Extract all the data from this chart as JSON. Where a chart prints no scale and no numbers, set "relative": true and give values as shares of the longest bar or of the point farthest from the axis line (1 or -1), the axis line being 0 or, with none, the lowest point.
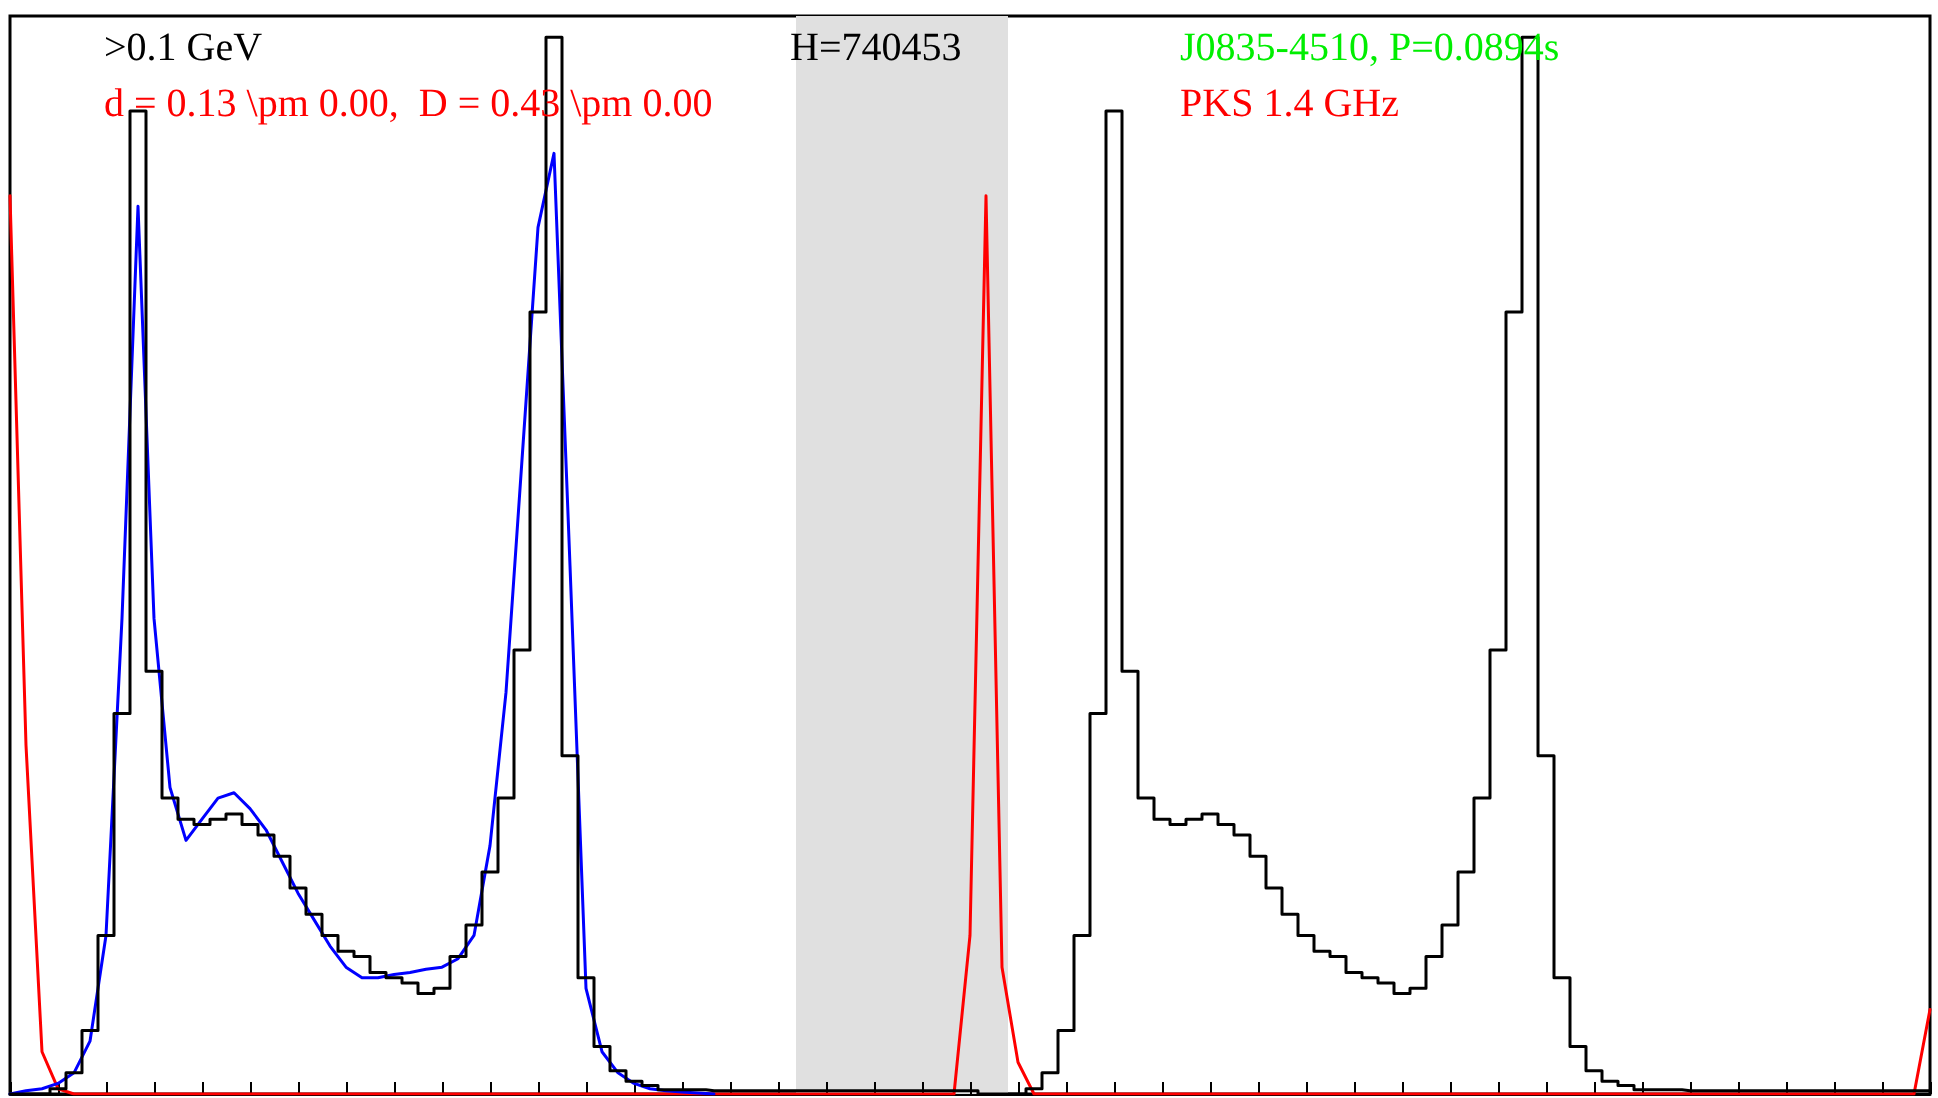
{
  "chart_data": {
    "type": "line",
    "relative": true,
    "tick_labels": false,
    "grid": false,
    "line_style": "solid",
    "categories": [
      null,
      null,
      null,
      null,
      null,
      null,
      null,
      null,
      null,
      null,
      null,
      null,
      null,
      null,
      null,
      null,
      null,
      null,
      null,
      null,
      null,
      null,
      null,
      null,
      null,
      null,
      null,
      null,
      null,
      null,
      null,
      null,
      null,
      null,
      null,
      null,
      null,
      null,
      null,
      null,
      null,
      null,
      null,
      null,
      null,
      null,
      null,
      null,
      null,
      null,
      null,
      null,
      null,
      null,
      null,
      null,
      null,
      null,
      null,
      null,
      null,
      null,
      null,
      null,
      null,
      null,
      null,
      null,
      null,
      null,
      null,
      null,
      null,
      null,
      null,
      null,
      null,
      null,
      null,
      null,
      null,
      null,
      null,
      null,
      null,
      null,
      null,
      null,
      null,
      null,
      null,
      null,
      null,
      null,
      null,
      null,
      null,
      null,
      null,
      null,
      null,
      null,
      null,
      null,
      null,
      null,
      null,
      null,
      null,
      null,
      null,
      null,
      null,
      null,
      null,
      null,
      null,
      null,
      null,
      null,
      null
    ],
    "series": [
      {
        "type": "step",
        "color": "#000000",
        "values": [
          0,
          0,
          0,
          0.005,
          0.02,
          0.06,
          0.15,
          0.36,
          0.93,
          0.4,
          0.28,
          0.26,
          0.255,
          0.26,
          0.265,
          0.255,
          0.245,
          0.225,
          0.195,
          0.17,
          0.15,
          0.135,
          0.13,
          0.115,
          0.11,
          0.105,
          0.095,
          0.1,
          0.13,
          0.16,
          0.21,
          0.28,
          0.42,
          0.74,
          1.0,
          0.32,
          0.11,
          0.045,
          0.022,
          0.012,
          0.008,
          0.004,
          0.004,
          0.004,
          0.003,
          0.003,
          0.003,
          0.003,
          0.003,
          0.003,
          0.003,
          0.003,
          0.003,
          0.003,
          0.003,
          0.003,
          0.003,
          0.003,
          0.003,
          0.003,
          0.003,
          0,
          0,
          0,
          0.005,
          0.02,
          0.06,
          0.15,
          0.36,
          0.93,
          0.4,
          0.28,
          0.26,
          0.255,
          0.26,
          0.265,
          0.255,
          0.245,
          0.225,
          0.195,
          0.17,
          0.15,
          0.135,
          0.13,
          0.115,
          0.11,
          0.105,
          0.095,
          0.1,
          0.13,
          0.16,
          0.21,
          0.28,
          0.42,
          0.74,
          1.0,
          0.32,
          0.11,
          0.045,
          0.022,
          0.012,
          0.008,
          0.004,
          0.004,
          0.004,
          0.003,
          0.003,
          0.003,
          0.003,
          0.003,
          0.003,
          0.003,
          0.003,
          0.003,
          0.003,
          0.003,
          0.003,
          0.003,
          0.003,
          0.003,
          0.003
        ]
      },
      {
        "color": "#0000ff",
        "values": [
          0,
          0.003,
          0.005,
          0.01,
          0.02,
          0.05,
          0.15,
          0.45,
          0.84,
          0.45,
          0.29,
          0.24,
          0.26,
          0.28,
          0.285,
          0.27,
          0.25,
          0.22,
          0.19,
          0.165,
          0.14,
          0.12,
          0.11,
          0.11,
          0.113,
          0.115,
          0.118,
          0.12,
          0.128,
          0.15,
          0.235,
          0.38,
          0.6,
          0.82,
          0.89,
          0.5,
          0.1,
          0.04,
          0.02,
          0.01,
          0.005,
          0.003,
          0.002,
          0.001,
          0,
          null,
          null,
          null,
          null,
          null,
          null,
          null,
          null,
          null,
          null,
          null,
          null,
          null,
          null,
          null,
          null,
          null,
          null,
          null,
          null,
          null,
          null,
          null,
          null,
          null,
          null,
          null,
          null,
          null,
          null,
          null,
          null,
          null,
          null,
          null,
          null,
          null,
          null,
          null,
          null,
          null,
          null,
          null,
          null,
          null,
          null,
          null,
          null,
          null,
          null,
          null,
          null,
          null,
          null,
          null,
          null,
          null,
          null,
          null,
          null,
          null,
          null,
          null,
          null,
          null,
          null,
          null,
          null,
          null,
          null,
          null,
          null,
          null,
          null,
          null,
          null
        ]
      },
      {
        "color": "#ff0000",
        "values": [
          0.85,
          0.33,
          0.04,
          0.005,
          0,
          0,
          0,
          0,
          0,
          0,
          0,
          0,
          0,
          0,
          0,
          0,
          0,
          0,
          0,
          0,
          0,
          0,
          0,
          0,
          0,
          0,
          0,
          0,
          0,
          0,
          0,
          0,
          0,
          0,
          0,
          0,
          0,
          0,
          0,
          0,
          0,
          0,
          0,
          0,
          0,
          0,
          0,
          0,
          0,
          0,
          0,
          0,
          0,
          0,
          0,
          0,
          0,
          0,
          0,
          0,
          0.15,
          0.85,
          0.12,
          0.03,
          0,
          0,
          0,
          0,
          0,
          0,
          0,
          0,
          0,
          0,
          0,
          0,
          0,
          0,
          0,
          0,
          0,
          0,
          0,
          0,
          0,
          0,
          0,
          0,
          0,
          0,
          0,
          0,
          0,
          0,
          0,
          0,
          0,
          0,
          0,
          0,
          0,
          0,
          0,
          0,
          0,
          0,
          0,
          0,
          0,
          0,
          0,
          0,
          0,
          0,
          0,
          0,
          0,
          0,
          0,
          0,
          0.08
        ]
      }
    ],
    "annotations": [
      ">0.1 GeV",
      "d = 0.13 \\pm 0.00,  D = 0.43 \\pm 0.00",
      "H=740453",
      "J0835-4510, P=0.0894s",
      "PKS 1.4 GHz"
    ]
  }
}
